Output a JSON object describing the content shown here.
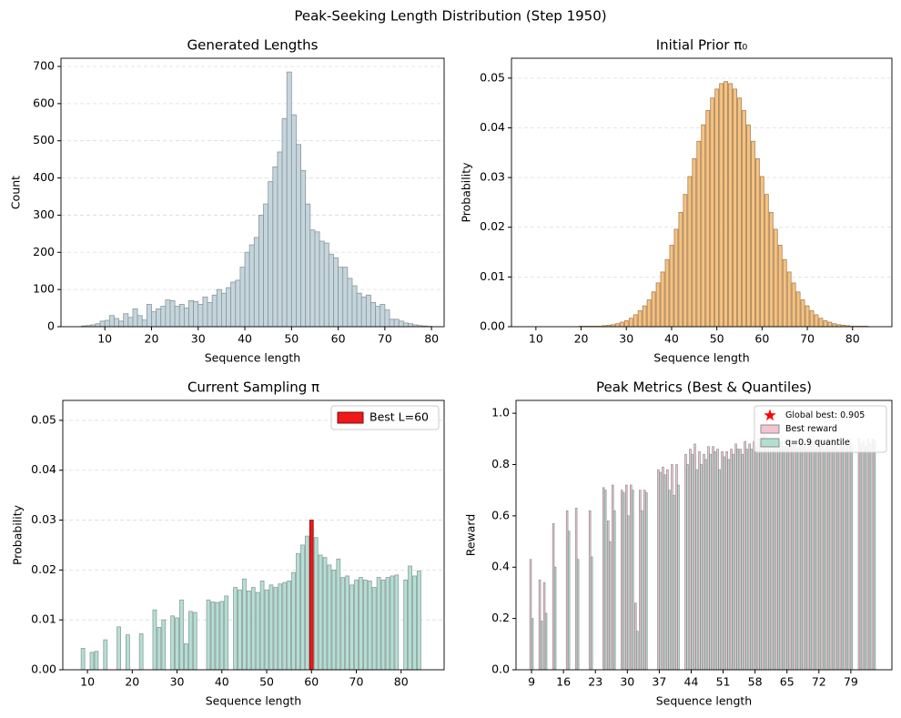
{
  "title": "Peak-Seeking Length Distribution (Step 1950)",
  "chart_data": [
    {
      "type": "histogram",
      "title": "Generated Lengths",
      "xlabel": "Sequence length",
      "ylabel": "Count",
      "bins": [
        5,
        6,
        7,
        8,
        9,
        10,
        11,
        12,
        13,
        14,
        15,
        16,
        17,
        18,
        19,
        20,
        21,
        22,
        23,
        24,
        25,
        26,
        27,
        28,
        29,
        30,
        31,
        32,
        33,
        34,
        35,
        36,
        37,
        38,
        39,
        40,
        41,
        42,
        43,
        44,
        45,
        46,
        47,
        48,
        49,
        50,
        51,
        52,
        53,
        54,
        55,
        56,
        57,
        58,
        59,
        60,
        61,
        62,
        63,
        64,
        65,
        66,
        67,
        68,
        69,
        70,
        71,
        72,
        73,
        74,
        75,
        76,
        77,
        78,
        79,
        80
      ],
      "values": [
        2,
        3,
        5,
        8,
        15,
        17,
        30,
        22,
        15,
        35,
        25,
        48,
        30,
        18,
        60,
        40,
        48,
        55,
        72,
        70,
        55,
        60,
        50,
        70,
        68,
        60,
        80,
        65,
        85,
        100,
        90,
        105,
        120,
        125,
        160,
        200,
        220,
        240,
        300,
        330,
        390,
        430,
        470,
        560,
        685,
        570,
        490,
        420,
        330,
        260,
        255,
        230,
        225,
        195,
        185,
        160,
        160,
        130,
        110,
        90,
        80,
        85,
        65,
        55,
        60,
        45,
        20,
        20,
        15,
        10,
        8,
        5,
        3,
        2,
        1
      ],
      "color": "#c5d5dc",
      "edgecolor": "#8a969c",
      "xlim": [
        0.6,
        82.7
      ],
      "ylim": [
        0,
        722
      ],
      "xticks": [
        10,
        20,
        30,
        40,
        50,
        60,
        70,
        80
      ],
      "yticks": [
        0,
        100,
        200,
        300,
        400,
        500,
        600,
        700
      ],
      "grid": true
    },
    {
      "type": "bar",
      "title": "Initial Prior π₀",
      "xlabel": "Sequence length",
      "ylabel": "Probability",
      "x": [
        9,
        10,
        11,
        12,
        13,
        14,
        15,
        16,
        17,
        18,
        19,
        20,
        21,
        22,
        23,
        24,
        25,
        26,
        27,
        28,
        29,
        30,
        31,
        32,
        33,
        34,
        35,
        36,
        37,
        38,
        39,
        40,
        41,
        42,
        43,
        44,
        45,
        46,
        47,
        48,
        49,
        50,
        51,
        52,
        53,
        54,
        55,
        56,
        57,
        58,
        59,
        60,
        61,
        62,
        63,
        64,
        65,
        66,
        67,
        68,
        69,
        70,
        71,
        72,
        73,
        74,
        75,
        76,
        77,
        78,
        79,
        80,
        81,
        82,
        83,
        84
      ],
      "values": [
        0,
        0,
        0,
        0,
        0,
        0,
        0,
        0,
        0,
        0,
        0,
        0.0001,
        0.0001,
        0.0001,
        0.0001,
        0.0001,
        0.0002,
        0.0003,
        0.0004,
        0.0006,
        0.0009,
        0.0012,
        0.0017,
        0.0024,
        0.0032,
        0.0042,
        0.0054,
        0.007,
        0.0088,
        0.011,
        0.0135,
        0.0164,
        0.0196,
        0.023,
        0.0266,
        0.0302,
        0.0338,
        0.0373,
        0.0406,
        0.0435,
        0.046,
        0.0478,
        0.0489,
        0.0493,
        0.0489,
        0.0478,
        0.046,
        0.0435,
        0.0406,
        0.0373,
        0.0338,
        0.0302,
        0.0266,
        0.023,
        0.0196,
        0.0164,
        0.0135,
        0.011,
        0.0088,
        0.007,
        0.0054,
        0.0042,
        0.0032,
        0.0024,
        0.0017,
        0.0012,
        0.0009,
        0.0006,
        0.0004,
        0.0003,
        0.0002,
        0.0001,
        0.0001,
        0.0001,
        0.0001,
        0
      ],
      "color": "#f5c283",
      "edgecolor": "#a8804f",
      "xlim": [
        4.6,
        88.7
      ],
      "ylim": [
        0,
        0.054
      ],
      "xticks": [
        10,
        20,
        30,
        40,
        50,
        60,
        70,
        80
      ],
      "yticks": [
        {
          "value": 0,
          "label": "0.00"
        },
        {
          "value": 0.01,
          "label": "0.01"
        },
        {
          "value": 0.02,
          "label": "0.02"
        },
        {
          "value": 0.03,
          "label": "0.03"
        },
        {
          "value": 0.04,
          "label": "0.04"
        },
        {
          "value": 0.05,
          "label": "0.05"
        }
      ],
      "grid": true
    },
    {
      "type": "bar",
      "title": "Current Sampling π",
      "xlabel": "Sequence length",
      "ylabel": "Probability",
      "x": [
        9,
        10,
        11,
        12,
        13,
        14,
        15,
        16,
        17,
        18,
        19,
        20,
        21,
        22,
        23,
        24,
        25,
        26,
        27,
        28,
        29,
        30,
        31,
        32,
        33,
        34,
        35,
        36,
        37,
        38,
        39,
        40,
        41,
        42,
        43,
        44,
        45,
        46,
        47,
        48,
        49,
        50,
        51,
        52,
        53,
        54,
        55,
        56,
        57,
        58,
        59,
        60,
        61,
        62,
        63,
        64,
        65,
        66,
        67,
        68,
        69,
        70,
        71,
        72,
        73,
        74,
        75,
        76,
        77,
        78,
        79,
        80,
        81,
        82,
        83,
        84
      ],
      "values": [
        0.0043,
        0,
        0.0035,
        0.0037,
        0,
        0.006,
        0,
        0,
        0.0086,
        0,
        0.007,
        0,
        0,
        0.0072,
        0,
        0,
        0.012,
        0.0085,
        0.01,
        0,
        0.0108,
        0.0104,
        0.014,
        0.0052,
        0.0117,
        0.0115,
        0,
        0,
        0.014,
        0.0136,
        0.0135,
        0.0137,
        0.0148,
        0,
        0.0165,
        0.016,
        0.0182,
        0.0158,
        0.0165,
        0.0155,
        0.0178,
        0.016,
        0.017,
        0.0165,
        0.0172,
        0.0175,
        0.0178,
        0.0195,
        0.0233,
        0.025,
        0.0268,
        0.03,
        0.0265,
        0.023,
        0.0225,
        0.021,
        0.02,
        0.0222,
        0.0185,
        0.0188,
        0.017,
        0.018,
        0.0185,
        0.018,
        0.0178,
        0.0165,
        0.0185,
        0.018,
        0.0185,
        0.0188,
        0.019,
        0,
        0.018,
        0.0208,
        0.0188,
        0.0198
      ],
      "color": "#b4dfd5",
      "edgecolor": "#8c9d99",
      "highlight": {
        "name": "Best L=60",
        "index": 51,
        "color": "#f01818",
        "edgecolor": "#7a0d0d"
      },
      "legend": "upper right",
      "xlim": [
        4.5,
        89.6
      ],
      "ylim": [
        0,
        0.054
      ],
      "xticks": [
        10,
        20,
        30,
        40,
        50,
        60,
        70,
        80
      ],
      "yticks": [
        {
          "value": 0,
          "label": "0.00"
        },
        {
          "value": 0.01,
          "label": "0.01"
        },
        {
          "value": 0.02,
          "label": "0.02"
        },
        {
          "value": 0.03,
          "label": "0.03"
        },
        {
          "value": 0.04,
          "label": "0.04"
        },
        {
          "value": 0.05,
          "label": "0.05"
        }
      ],
      "grid": true
    },
    {
      "type": "grouped_bar",
      "title": "Peak Metrics (Best & Quantiles)",
      "xlabel": "Sequence length",
      "ylabel": "Reward",
      "x": [
        9,
        10,
        11,
        12,
        13,
        14,
        15,
        16,
        17,
        18,
        19,
        20,
        21,
        22,
        23,
        24,
        25,
        26,
        27,
        28,
        29,
        30,
        31,
        32,
        33,
        34,
        35,
        36,
        37,
        38,
        39,
        40,
        41,
        42,
        43,
        44,
        45,
        46,
        47,
        48,
        49,
        50,
        51,
        52,
        53,
        54,
        55,
        56,
        57,
        58,
        59,
        60,
        61,
        62,
        63,
        64,
        65,
        66,
        67,
        68,
        69,
        70,
        71,
        72,
        73,
        74,
        75,
        76,
        77,
        78,
        79,
        80,
        81,
        82,
        83,
        84
      ],
      "series": [
        {
          "name": "Best reward",
          "color": "#f2c4cf",
          "values": [
            0.43,
            null,
            0.35,
            0.34,
            null,
            0.57,
            null,
            null,
            0.62,
            null,
            0.63,
            null,
            null,
            0.62,
            null,
            null,
            0.71,
            0.58,
            0.72,
            null,
            0.7,
            0.72,
            0.72,
            0.26,
            0.7,
            0.7,
            null,
            null,
            0.78,
            0.79,
            0.78,
            0.8,
            0.8,
            null,
            0.84,
            0.86,
            0.88,
            0.85,
            0.84,
            0.87,
            0.87,
            0.86,
            0.85,
            0.85,
            0.86,
            0.88,
            0.86,
            0.89,
            0.88,
            0.89,
            0.9,
            0.905,
            0.9,
            0.89,
            0.9,
            0.89,
            0.9,
            0.89,
            0.89,
            0.9,
            0.89,
            0.9,
            0.89,
            0.9,
            0.89,
            0.89,
            0.9,
            0.89,
            0.9,
            0.89,
            0.9,
            null,
            0.9,
            0.89,
            0.9,
            0.9
          ]
        },
        {
          "name": "q=0.9 quantile",
          "color": "#b2dfd2",
          "values": [
            0.2,
            null,
            0.19,
            0.22,
            null,
            0.4,
            null,
            null,
            0.54,
            null,
            0.43,
            null,
            null,
            0.44,
            null,
            null,
            0.7,
            0.5,
            0.62,
            null,
            0.69,
            0.6,
            0.7,
            0.15,
            0.62,
            0.69,
            null,
            null,
            0.77,
            0.76,
            0.7,
            0.68,
            0.72,
            null,
            0.8,
            0.84,
            0.78,
            0.8,
            0.82,
            0.84,
            0.85,
            0.78,
            0.83,
            0.82,
            0.84,
            0.86,
            0.84,
            0.86,
            0.86,
            0.87,
            0.88,
            0.89,
            0.88,
            0.87,
            0.88,
            0.87,
            0.87,
            0.88,
            0.86,
            0.88,
            0.86,
            0.88,
            0.86,
            0.87,
            0.86,
            0.86,
            0.88,
            0.86,
            0.87,
            0.87,
            0.87,
            null,
            0.88,
            0.87,
            0.88,
            0.89
          ]
        }
      ],
      "edgecolor": "#8e8e8e",
      "annotation": {
        "label": "Global best: 0.905",
        "x": 60,
        "y": 0.905,
        "color": "#ff0000"
      },
      "legend": "upper right",
      "xlim": [
        5.6,
        88
      ],
      "ylim": [
        0,
        1.05
      ],
      "xticks": [
        9,
        16,
        23,
        30,
        37,
        44,
        51,
        58,
        65,
        72,
        79
      ],
      "yticks": [
        {
          "value": 0,
          "label": "0.0"
        },
        {
          "value": 0.2,
          "label": "0.2"
        },
        {
          "value": 0.4,
          "label": "0.4"
        },
        {
          "value": 0.6,
          "label": "0.6"
        },
        {
          "value": 0.8,
          "label": "0.8"
        },
        {
          "value": 1.0,
          "label": "1.0"
        }
      ],
      "grid": false
    }
  ]
}
